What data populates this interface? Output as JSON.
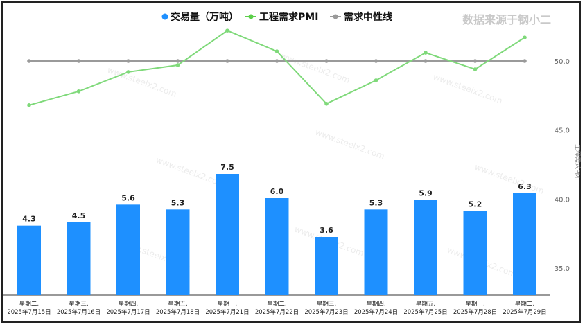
{
  "watermark": "数据来源于钢小二",
  "chart_data": {
    "type": "bar",
    "legend": [
      {
        "name": "交易量（万吨）",
        "color": "#1e90ff",
        "marker": "circle"
      },
      {
        "name": "工程需求PMI",
        "color": "#5ccf4a",
        "marker": "line-dot"
      },
      {
        "name": "需求中性线",
        "color": "#9a9a9a",
        "marker": "line-dot"
      }
    ],
    "categories": [
      [
        "星期二,",
        "2025年7月15日"
      ],
      [
        "星期三,",
        "2025年7月16日"
      ],
      [
        "星期四,",
        "2025年7月17日"
      ],
      [
        "星期五,",
        "2025年7月18日"
      ],
      [
        "星期一,",
        "2025年7月21日"
      ],
      [
        "星期二,",
        "2025年7月22日"
      ],
      [
        "星期三,",
        "2025年7月23日"
      ],
      [
        "星期四,",
        "2025年7月24日"
      ],
      [
        "星期五,",
        "2025年7月25日"
      ],
      [
        "星期一,",
        "2025年7月28日"
      ],
      [
        "星期二,",
        "2025年7月29日"
      ]
    ],
    "series": [
      {
        "name": "交易量（万吨）",
        "type": "bar",
        "values": [
          4.3,
          4.5,
          5.6,
          5.3,
          7.5,
          6.0,
          3.6,
          5.3,
          5.9,
          5.2,
          6.3
        ],
        "labels": [
          "4.3",
          "4.5",
          "5.6",
          "5.3",
          "7.5",
          "6.0",
          "3.6",
          "5.3",
          "5.9",
          "5.2",
          "6.3"
        ]
      },
      {
        "name": "工程需求PMI",
        "type": "line",
        "values": [
          46.8,
          47.8,
          49.2,
          49.7,
          52.2,
          50.7,
          46.9,
          48.6,
          50.6,
          49.4,
          51.7
        ]
      },
      {
        "name": "需求中性线",
        "type": "line",
        "values": [
          50,
          50,
          50,
          50,
          50,
          50,
          50,
          50,
          50,
          50,
          50
        ]
      }
    ],
    "right_axis": {
      "label": "工程需求PMI",
      "ticks": [
        "50.0",
        "45.0",
        "40.0",
        "35.0"
      ],
      "range": [
        33,
        54.8
      ]
    },
    "bar_axis_range": [
      0,
      10.5
    ]
  }
}
